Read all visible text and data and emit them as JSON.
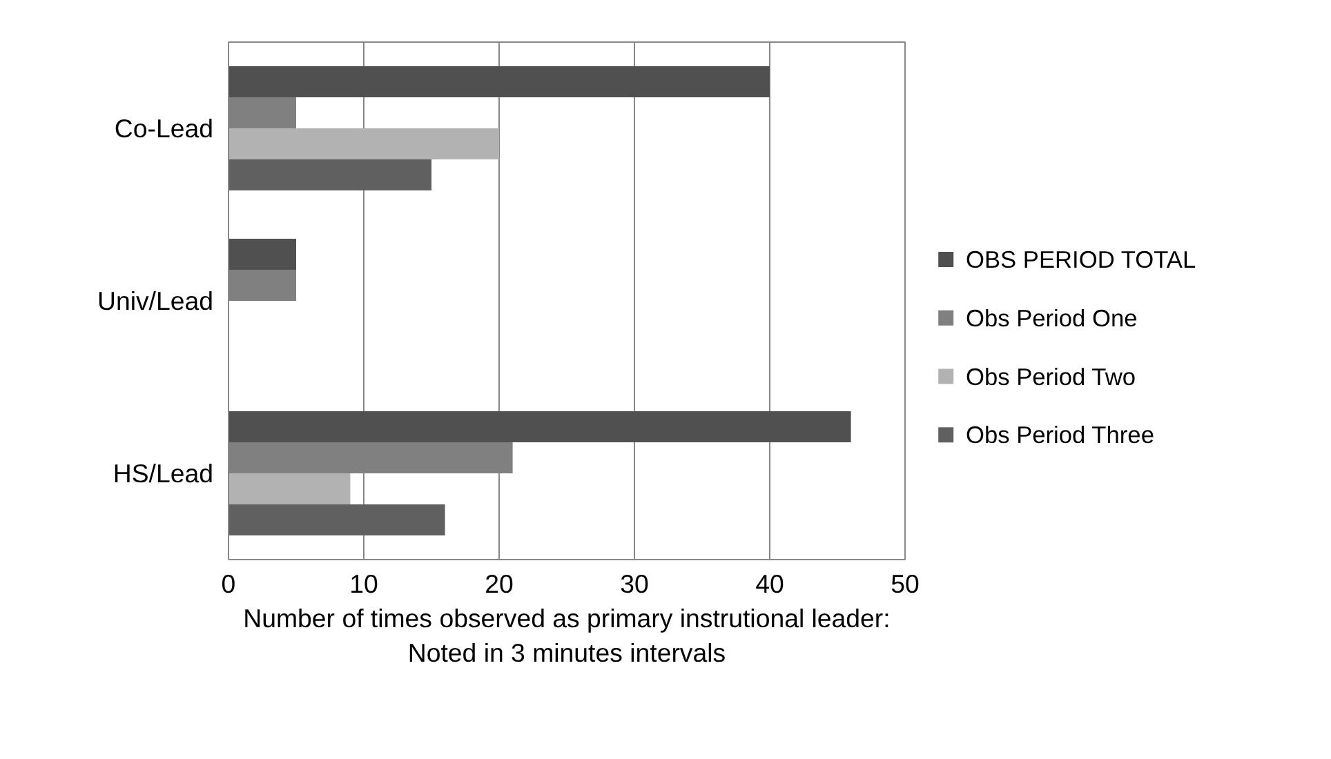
{
  "chart_data": {
    "type": "bar",
    "orientation": "horizontal",
    "categories": [
      "Co-Lead",
      "Univ/Lead",
      "HS/Lead"
    ],
    "xlabel": "Number of times observed as primary instrutional leader:\nNoted in 3 minutes intervals",
    "series": [
      {
        "name": "OBS PERIOD TOTAL",
        "color": "#505050",
        "values": [
          40,
          5,
          46
        ]
      },
      {
        "name": "Obs Period One",
        "color": "#808080",
        "values": [
          5,
          5,
          21
        ]
      },
      {
        "name": "Obs Period Two",
        "color": "#b2b2b2",
        "values": [
          20,
          0,
          9
        ]
      },
      {
        "name": "Obs Period Three",
        "color": "#606060",
        "values": [
          15,
          0,
          16
        ]
      }
    ],
    "xlim": [
      0,
      50
    ],
    "xticks": [
      0,
      10,
      20,
      30,
      40,
      50
    ],
    "grid": "x",
    "legend": "right"
  }
}
